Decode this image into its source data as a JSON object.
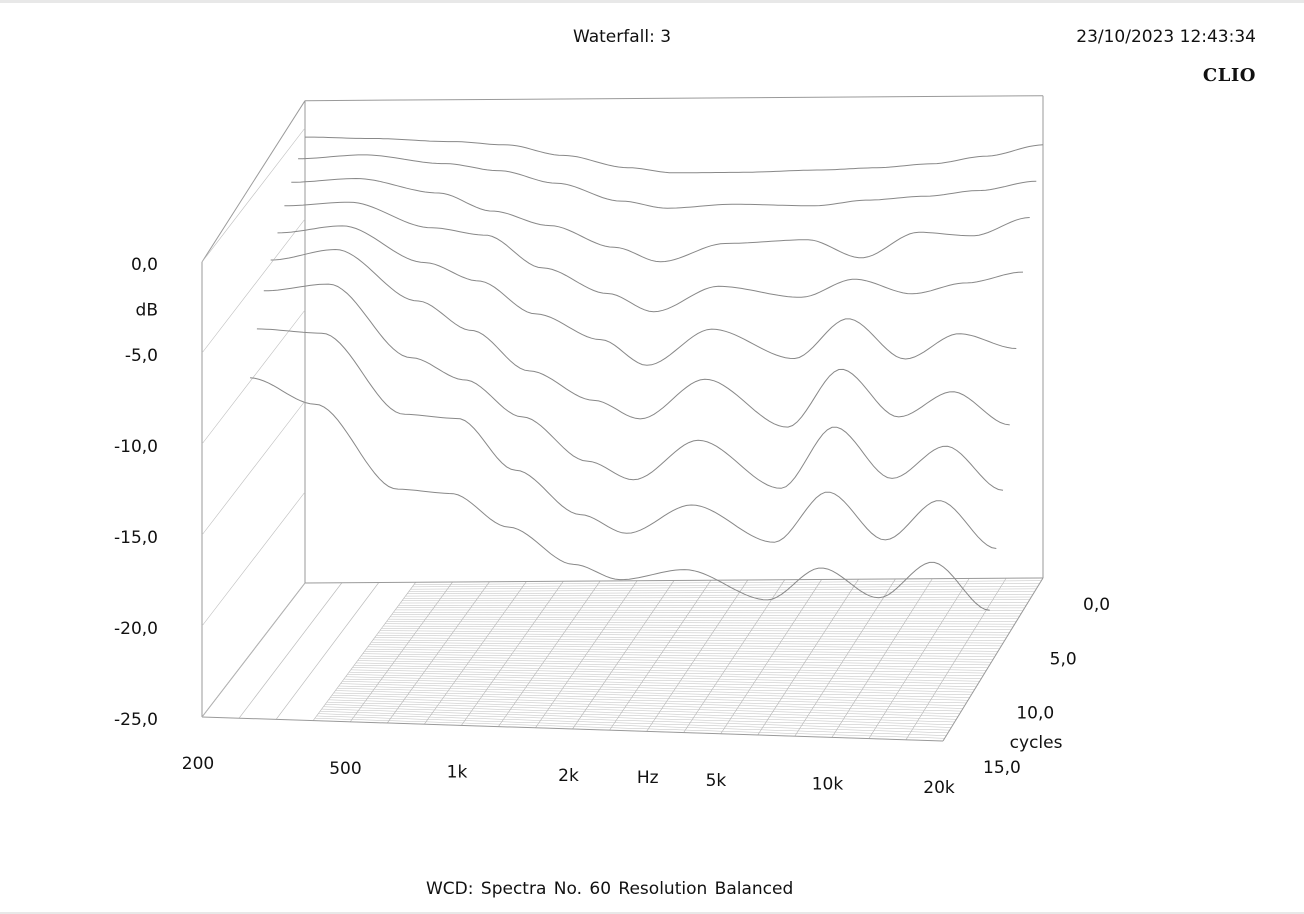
{
  "header": {
    "title": "Waterfall: 3",
    "timestamp": "23/10/2023 12:43:34",
    "brand": "CLIO"
  },
  "footer": {
    "text": "WCD:   Spectra No. 60   Resolution Balanced"
  },
  "colors": {
    "trace": "#888888",
    "axis": "#9a9a9a",
    "floor": "#bcbcbc",
    "background": "#ffffff"
  },
  "chart_data": {
    "type": "waterfall",
    "title": "Waterfall: 3",
    "x_axis": {
      "label": "Hz",
      "scale": "log",
      "range": [
        200,
        20000
      ],
      "ticks": [
        {
          "value": 200,
          "label": "200"
        },
        {
          "value": 500,
          "label": "500"
        },
        {
          "value": 1000,
          "label": "1k"
        },
        {
          "value": 2000,
          "label": "2k"
        },
        {
          "value": 5000,
          "label": "5k"
        },
        {
          "value": 10000,
          "label": "10k"
        },
        {
          "value": 20000,
          "label": "20k"
        }
      ]
    },
    "y_axis": {
      "label": "dB",
      "range": [
        -25,
        0
      ],
      "ticks": [
        {
          "value": 0,
          "label": "0,0"
        },
        {
          "value": -5,
          "label": "-5,0"
        },
        {
          "value": -10,
          "label": "-10,0"
        },
        {
          "value": -15,
          "label": "-15,0"
        },
        {
          "value": -20,
          "label": "-20,0"
        },
        {
          "value": -25,
          "label": "-25,0"
        }
      ]
    },
    "z_axis": {
      "label": "cycles",
      "range": [
        0,
        15
      ],
      "ticks": [
        {
          "value": 0,
          "label": "0,0"
        },
        {
          "value": 5,
          "label": "5,0"
        },
        {
          "value": 10,
          "label": "10,0"
        },
        {
          "value": 15,
          "label": "15,0"
        }
      ]
    },
    "spectra_count": 60,
    "resolution": "Balanced",
    "spectra": [
      {
        "cycles": 0.0,
        "hz": [
          200,
          300,
          500,
          700,
          1000,
          1500,
          2000,
          3000,
          5000,
          7000,
          10000,
          14000,
          20000
        ],
        "db": [
          -0.5,
          -0.6,
          -0.8,
          -1.0,
          -1.6,
          -2.3,
          -2.6,
          -2.6,
          -2.5,
          -2.4,
          -2.2,
          -1.8,
          -1.2
        ]
      },
      {
        "cycles": 1.0,
        "hz": [
          200,
          300,
          500,
          700,
          1000,
          1500,
          2000,
          3000,
          5000,
          7000,
          10000,
          14000,
          20000
        ],
        "db": [
          -1.2,
          -1.0,
          -1.5,
          -1.9,
          -2.6,
          -3.6,
          -4.0,
          -3.8,
          -3.9,
          -3.6,
          -3.4,
          -3.1,
          -2.6
        ]
      },
      {
        "cycles": 2.0,
        "hz": [
          200,
          300,
          500,
          700,
          1000,
          1500,
          2000,
          3000,
          5000,
          7000,
          10000,
          14000,
          20000
        ],
        "db": [
          -2.0,
          -1.8,
          -2.6,
          -3.6,
          -4.4,
          -5.6,
          -6.4,
          -5.4,
          -5.2,
          -6.2,
          -4.8,
          -5.0,
          -4.0
        ]
      },
      {
        "cycles": 3.0,
        "hz": [
          200,
          300,
          500,
          700,
          1000,
          1500,
          2000,
          3000,
          5000,
          7000,
          10000,
          14000,
          20000
        ],
        "db": [
          -2.8,
          -2.6,
          -4.0,
          -4.4,
          -6.2,
          -7.6,
          -8.6,
          -7.2,
          -7.8,
          -6.8,
          -7.6,
          -7.0,
          -6.4
        ]
      },
      {
        "cycles": 4.0,
        "hz": [
          200,
          300,
          500,
          700,
          1000,
          1500,
          2000,
          3000,
          5000,
          7000,
          10000,
          14000,
          20000
        ],
        "db": [
          -3.8,
          -3.4,
          -5.4,
          -6.4,
          -8.2,
          -9.6,
          -11.0,
          -9.0,
          -10.6,
          -8.4,
          -10.6,
          -9.2,
          -10.0
        ]
      },
      {
        "cycles": 5.0,
        "hz": [
          200,
          300,
          500,
          700,
          1000,
          1500,
          2000,
          3000,
          5000,
          7000,
          10000,
          14000,
          20000
        ],
        "db": [
          -4.8,
          -4.2,
          -7.0,
          -8.6,
          -10.8,
          -12.4,
          -13.4,
          -11.2,
          -13.8,
          -10.6,
          -13.2,
          -11.8,
          -13.6
        ]
      },
      {
        "cycles": 6.0,
        "hz": [
          200,
          300,
          500,
          700,
          1000,
          1500,
          2000,
          3000,
          5000,
          7000,
          10000,
          14000,
          20000
        ],
        "db": [
          -6.0,
          -5.6,
          -9.6,
          -10.8,
          -12.8,
          -15.2,
          -16.2,
          -14.0,
          -16.6,
          -13.2,
          -16.0,
          -14.2,
          -16.6
        ]
      },
      {
        "cycles": 7.0,
        "hz": [
          200,
          300,
          500,
          700,
          1000,
          1500,
          2000,
          3000,
          5000,
          7000,
          10000,
          14000,
          20000
        ],
        "db": [
          -7.6,
          -7.8,
          -12.2,
          -12.4,
          -15.2,
          -17.6,
          -18.6,
          -17.0,
          -19.0,
          -16.2,
          -18.8,
          -16.6,
          -19.2
        ]
      },
      {
        "cycles": 8.0,
        "hz": [
          200,
          300,
          500,
          700,
          1000,
          1500,
          2000,
          3000,
          5000,
          7000,
          10000,
          14000,
          20000
        ],
        "db": [
          -9.8,
          -11.2,
          -15.8,
          -16.0,
          -17.8,
          -19.8,
          -20.6,
          -20.0,
          -21.6,
          -19.8,
          -21.4,
          -19.4,
          -22.0
        ]
      }
    ]
  }
}
